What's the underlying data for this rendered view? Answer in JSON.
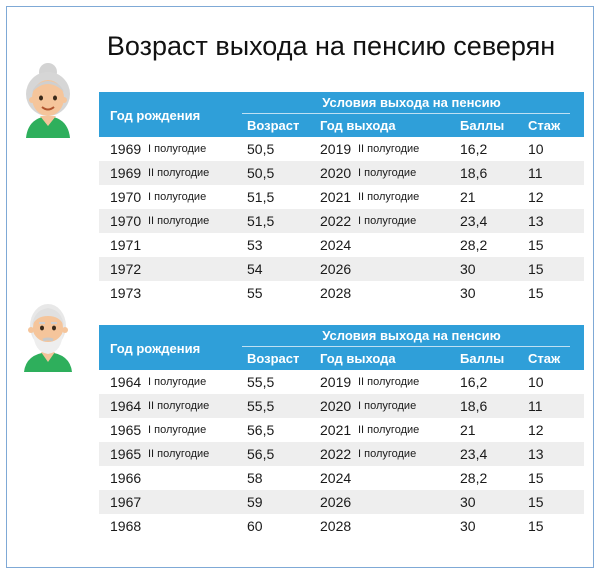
{
  "title": "Возраст выхода на пенсию северян",
  "colors": {
    "header_bg": "#2f9fd9",
    "stripe": "#eeeeee",
    "frame": "#7fa9d6"
  },
  "table_women": {
    "header": {
      "birth_label": "Год рождения",
      "conditions_label": "Условия выхода на пенсию",
      "age_label": "Возраст",
      "exit_year_label": "Год выхода",
      "points_label": "Баллы",
      "stazh_label": "Стаж"
    },
    "rows": [
      {
        "year": "1969",
        "half": "I полугодие",
        "age": "50,5",
        "exit_year": "2019",
        "exit_half": "II полугодие",
        "points": "16,2",
        "stazh": "10"
      },
      {
        "year": "1969",
        "half": "II полугодие",
        "age": "50,5",
        "exit_year": "2020",
        "exit_half": "I полугодие",
        "points": "18,6",
        "stazh": "11"
      },
      {
        "year": "1970",
        "half": "I полугодие",
        "age": "51,5",
        "exit_year": "2021",
        "exit_half": "II полугодие",
        "points": "21",
        "stazh": "12"
      },
      {
        "year": "1970",
        "half": "II полугодие",
        "age": "51,5",
        "exit_year": "2022",
        "exit_half": "I полугодие",
        "points": "23,4",
        "stazh": "13"
      },
      {
        "year": "1971",
        "half": "",
        "age": "53",
        "exit_year": "2024",
        "exit_half": "",
        "points": "28,2",
        "stazh": "15"
      },
      {
        "year": "1972",
        "half": "",
        "age": "54",
        "exit_year": "2026",
        "exit_half": "",
        "points": "30",
        "stazh": "15"
      },
      {
        "year": "1973",
        "half": "",
        "age": "55",
        "exit_year": "2028",
        "exit_half": "",
        "points": "30",
        "stazh": "15"
      }
    ]
  },
  "table_men": {
    "header": {
      "birth_label": "Год рождения",
      "conditions_label": "Условия выхода на пенсию",
      "age_label": "Возраст",
      "exit_year_label": "Год выхода",
      "points_label": "Баллы",
      "stazh_label": "Стаж"
    },
    "rows": [
      {
        "year": "1964",
        "half": "I полугодие",
        "age": "55,5",
        "exit_year": "2019",
        "exit_half": "II полугодие",
        "points": "16,2",
        "stazh": "10"
      },
      {
        "year": "1964",
        "half": "II полугодие",
        "age": "55,5",
        "exit_year": "2020",
        "exit_half": "I полугодие",
        "points": "18,6",
        "stazh": "11"
      },
      {
        "year": "1965",
        "half": "I полугодие",
        "age": "56,5",
        "exit_year": "2021",
        "exit_half": "II полугодие",
        "points": "21",
        "stazh": "12"
      },
      {
        "year": "1965",
        "half": "II полугодие",
        "age": "56,5",
        "exit_year": "2022",
        "exit_half": "I полугодие",
        "points": "23,4",
        "stazh": "13"
      },
      {
        "year": "1966",
        "half": "",
        "age": "58",
        "exit_year": "2024",
        "exit_half": "",
        "points": "28,2",
        "stazh": "15"
      },
      {
        "year": "1967",
        "half": "",
        "age": "59",
        "exit_year": "2026",
        "exit_half": "",
        "points": "30",
        "stazh": "15"
      },
      {
        "year": "1968",
        "half": "",
        "age": "60",
        "exit_year": "2028",
        "exit_half": "",
        "points": "30",
        "stazh": "15"
      }
    ]
  }
}
